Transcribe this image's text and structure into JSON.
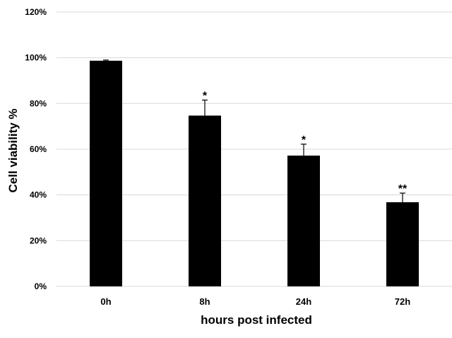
{
  "chart_data": {
    "type": "bar",
    "categories": [
      "0h",
      "8h",
      "24h",
      "72h"
    ],
    "values": [
      98.7,
      74.7,
      57.2,
      36.8
    ],
    "errors": [
      0.3,
      6.8,
      5.0,
      4.0
    ],
    "significance": [
      "",
      "*",
      "*",
      "**"
    ],
    "title": "",
    "xlabel": "hours post infected",
    "ylabel": "Cell viability %",
    "ylim": [
      0,
      120
    ],
    "yticks": [
      0,
      20,
      40,
      60,
      80,
      100,
      120
    ],
    "ytick_labels": [
      "0%",
      "20%",
      "40%",
      "60%",
      "80%",
      "100%",
      "120%"
    ],
    "grid": true,
    "legend": "none",
    "bar_color": "#000000"
  }
}
